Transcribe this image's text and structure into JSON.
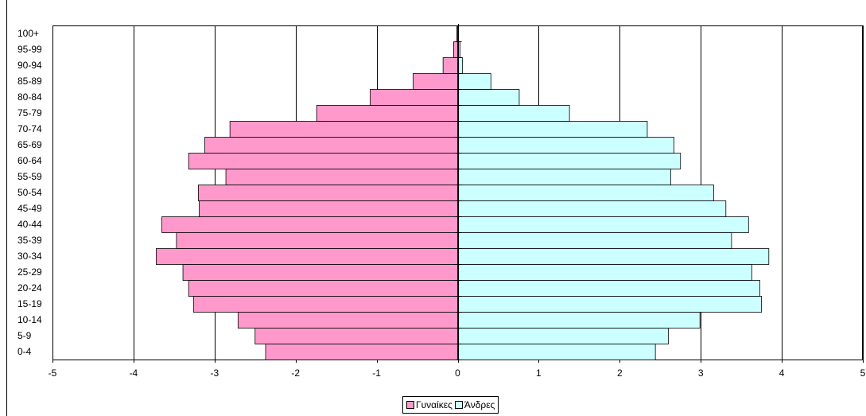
{
  "chart_data": {
    "type": "bar",
    "orientation": "horizontal",
    "categories": [
      "0-4",
      "5-9",
      "10-14",
      "15-19",
      "20-24",
      "25-29",
      "30-34",
      "35-39",
      "40-44",
      "45-49",
      "50-54",
      "55-59",
      "60-64",
      "65-69",
      "70-74",
      "75-79",
      "80-84",
      "85-89",
      "90-94",
      "95-99",
      "100+"
    ],
    "series": [
      {
        "name": "Γυναίκες",
        "color": "#ff99cc",
        "values": [
          -2.37,
          -2.5,
          -2.71,
          -3.26,
          -3.32,
          -3.39,
          -3.72,
          -3.47,
          -3.65,
          -3.19,
          -3.2,
          -2.86,
          -3.32,
          -3.12,
          -2.81,
          -1.74,
          -1.08,
          -0.55,
          -0.18,
          -0.05,
          -0.01
        ]
      },
      {
        "name": "Άνδρες",
        "color": "#ccffff",
        "values": [
          2.44,
          2.6,
          2.99,
          3.75,
          3.73,
          3.63,
          3.84,
          3.38,
          3.59,
          3.31,
          3.16,
          2.63,
          2.75,
          2.67,
          2.34,
          1.38,
          0.76,
          0.41,
          0.06,
          0.03,
          0.01
        ]
      }
    ],
    "xlim": [
      -5,
      5
    ],
    "xticks": [
      "-5",
      "-4",
      "-3",
      "-2",
      "-1",
      "0",
      "1",
      "2",
      "3",
      "4",
      "5"
    ],
    "grid": true,
    "legend_position": "bottom-center",
    "title": "",
    "xlabel": "",
    "ylabel": ""
  }
}
